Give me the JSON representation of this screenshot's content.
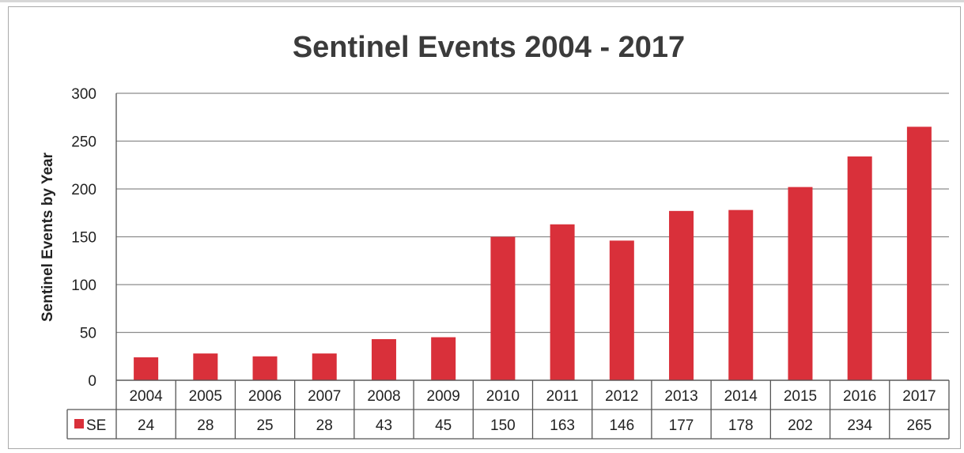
{
  "chart_data": {
    "type": "bar",
    "title": "Sentinel Events 2004 - 2017",
    "ylabel": "Sentinel Events by Year",
    "xlabel": "",
    "categories": [
      "2004",
      "2005",
      "2006",
      "2007",
      "2008",
      "2009",
      "2010",
      "2011",
      "2012",
      "2013",
      "2014",
      "2015",
      "2016",
      "2017"
    ],
    "series": [
      {
        "name": "SE",
        "values": [
          24,
          28,
          25,
          28,
          43,
          45,
          150,
          163,
          146,
          177,
          178,
          202,
          234,
          265
        ]
      }
    ],
    "ylim": [
      0,
      300
    ],
    "yticks": [
      0,
      50,
      100,
      150,
      200,
      250,
      300
    ],
    "grid": true,
    "legend": "data-table",
    "colors": {
      "bar": "#d9303a",
      "grid": "#8c8c8c",
      "axis": "#555555"
    }
  }
}
